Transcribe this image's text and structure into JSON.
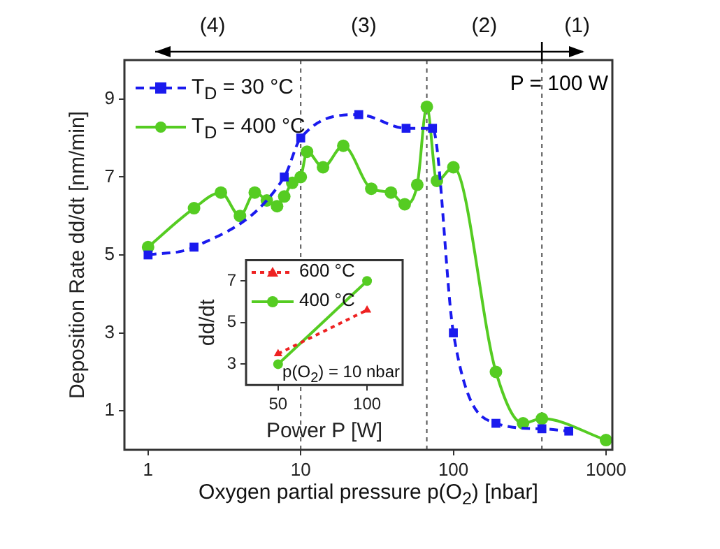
{
  "chart_data": [
    {
      "type": "line",
      "xlabel": "Oxygen partial pressure p(O$_{2}$) [nbar]",
      "ylabel": "Deposition Rate dd/dt [nm/min]",
      "log": "x",
      "xlim": [
        0.7,
        1100
      ],
      "xticks": [
        1,
        10,
        100,
        1000
      ],
      "ylim": [
        0,
        10
      ],
      "yticks": [
        1,
        3,
        5,
        7,
        9
      ],
      "grid": false,
      "legend": "top left",
      "annotations": [
        "(4)",
        "(3)",
        "(2)",
        "(1)",
        "P = 100 W"
      ],
      "ref_lines": [
        {
          "axis": "x",
          "value": 10,
          "color": "#555555",
          "line_style": "dotted"
        },
        {
          "axis": "x",
          "value": 67,
          "color": "#555555",
          "line_style": "dotted"
        },
        {
          "axis": "x",
          "value": 380,
          "color": "#555555",
          "line_style": "dotted"
        }
      ],
      "series": [
        {
          "name": "T$_{D}$ = 30 °C",
          "color": "#1a1aee",
          "marker": "square",
          "line_style": "dashed",
          "x": [
            1,
            2,
            7.8,
            10,
            24,
            49,
            73,
            100,
            190,
            380,
            570
          ],
          "values": [
            5.0,
            5.2,
            7.0,
            8.0,
            8.6,
            8.25,
            8.25,
            3.0,
            0.68,
            0.54,
            0.48
          ]
        },
        {
          "name": "T$_{D}$ = 400 °C",
          "color": "#55cc22",
          "marker": "circle",
          "line_style": "solid",
          "x": [
            1,
            2,
            3,
            4,
            5,
            6,
            7,
            7.8,
            8.8,
            10,
            11,
            14,
            19,
            29,
            39,
            48,
            58,
            67,
            78,
            100,
            190,
            286,
            380,
            1000
          ],
          "values": [
            5.2,
            6.2,
            6.6,
            6.0,
            6.6,
            6.4,
            6.25,
            6.5,
            6.85,
            7.0,
            7.65,
            7.25,
            7.8,
            6.7,
            6.6,
            6.3,
            6.8,
            8.8,
            6.9,
            7.25,
            2.0,
            0.68,
            0.8,
            0.25
          ]
        }
      ]
    },
    {
      "type": "line",
      "xlabel": "Power P [W]",
      "ylabel": "dd/dt",
      "xlim": [
        32,
        120
      ],
      "xticks": [
        50,
        100
      ],
      "ylim": [
        2,
        8
      ],
      "yticks": [
        3,
        5,
        7
      ],
      "grid": false,
      "legend": "top left",
      "annotations": [
        "p(O$_{2}$) = 10 nbar"
      ],
      "series": [
        {
          "name": "600 °C",
          "color": "#ee2222",
          "marker": "triangle",
          "line_style": "dotted",
          "x": [
            50,
            100
          ],
          "values": [
            3.5,
            5.6
          ]
        },
        {
          "name": "400 °C",
          "color": "#55cc22",
          "marker": "circle",
          "line_style": "solid",
          "x": [
            50,
            100
          ],
          "values": [
            3.0,
            7.0
          ]
        }
      ]
    }
  ]
}
